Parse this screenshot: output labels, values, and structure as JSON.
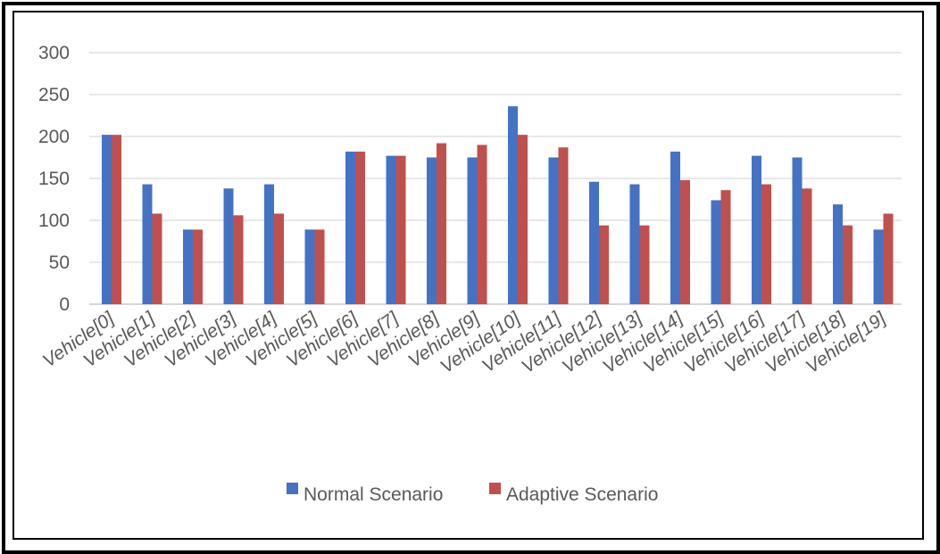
{
  "chart_data": {
    "type": "bar",
    "title": "",
    "xlabel": "",
    "ylabel": "",
    "ylim": [
      0,
      300
    ],
    "yticks": [
      0,
      50,
      100,
      150,
      200,
      250,
      300
    ],
    "grid": true,
    "legend_position": "bottom",
    "categories": [
      "Vehicle[0]",
      "Vehicle[1]",
      "Vehicle[2]",
      "Vehicle[3]",
      "Vehicle[4]",
      "Vehicle[5]",
      "Vehicle[6]",
      "Vehicle[7]",
      "Vehicle[8]",
      "Vehicle[9]",
      "Vehicle[10]",
      "Vehicle[11]",
      "Vehicle[12]",
      "Vehicle[13]",
      "Vehicle[14]",
      "Vehicle[15]",
      "Vehicle[16]",
      "Vehicle[17]",
      "Vehicle[18]",
      "Vehicle[19]"
    ],
    "series": [
      {
        "name": "Normal Scenario",
        "color": "#4472c4",
        "values": [
          202,
          143,
          89,
          138,
          143,
          89,
          182,
          177,
          175,
          175,
          236,
          175,
          146,
          143,
          182,
          124,
          177,
          175,
          119,
          89
        ]
      },
      {
        "name": "Adaptive Scenario",
        "color": "#c0504d",
        "values": [
          202,
          108,
          89,
          106,
          108,
          89,
          182,
          177,
          192,
          190,
          202,
          187,
          94,
          94,
          148,
          136,
          143,
          138,
          94,
          108
        ]
      }
    ]
  }
}
